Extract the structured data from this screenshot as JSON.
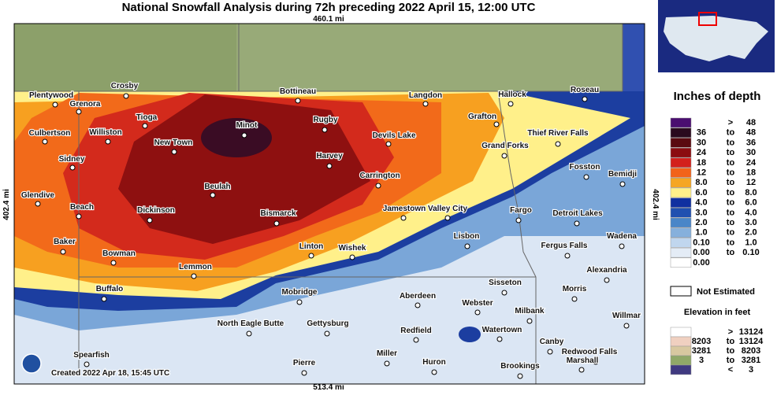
{
  "header": {
    "title": "National Snowfall Analysis during 72h preceding 2022 April 15, 12:00 UTC"
  },
  "map": {
    "scale_top": "460.1 mi",
    "scale_bottom": "513.4 mi",
    "scale_left": "402.4 mi",
    "scale_right": "402.4 mi",
    "created": "Created 2022 Apr 18, 15:45 UTC",
    "cities": [
      "Plentywood",
      "Crosby",
      "Grenora",
      "Bottineau",
      "Langdon",
      "Hallock",
      "Roseau",
      "Tioga",
      "Minot",
      "Rugby",
      "Grafton",
      "Culbertson",
      "Williston",
      "New Town",
      "Devils Lake",
      "Thief River Falls",
      "Grand Forks",
      "Sidney",
      "Harvey",
      "Fosston",
      "Carrington",
      "Bemidji",
      "Beulah",
      "Glendive",
      "Beach",
      "Jamestown",
      "Valley City",
      "Fargo",
      "Dickinson",
      "Detroit Lakes",
      "Bismarck",
      "Lisbon",
      "Wadena",
      "Baker",
      "Linton",
      "Wishek",
      "Fergus Falls",
      "Bowman",
      "Alexandria",
      "Lemmon",
      "Sisseton",
      "Buffalo",
      "Mobridge",
      "Morris",
      "Aberdeen",
      "Webster",
      "Milbank",
      "Willmar",
      "North Eagle Butte",
      "Gettysburg",
      "Redfield",
      "Watertown",
      "Canby",
      "Spearfish",
      "Miller",
      "Redwood Falls",
      "Marshall",
      "Pierre",
      "Huron",
      "Brookings"
    ]
  },
  "legend": {
    "depth_title": "Inches of depth",
    "depth_rows": [
      [
        ">",
        "48"
      ],
      [
        "36",
        "to",
        "48"
      ],
      [
        "30",
        "to",
        "36"
      ],
      [
        "24",
        "to",
        "30"
      ],
      [
        "18",
        "to",
        "24"
      ],
      [
        "12",
        "to",
        "18"
      ],
      [
        "8.0",
        "to",
        "12"
      ],
      [
        "6.0",
        "to",
        "8.0"
      ],
      [
        "4.0",
        "to",
        "6.0"
      ],
      [
        "3.0",
        "to",
        "4.0"
      ],
      [
        "2.0",
        "to",
        "3.0"
      ],
      [
        "1.0",
        "to",
        "2.0"
      ],
      [
        "0.10",
        "to",
        "1.0"
      ],
      [
        "0.00",
        "to",
        "0.10"
      ],
      [
        "0.00"
      ]
    ],
    "not_estimated": "Not Estimated",
    "elevation_title": "Elevation in feet",
    "elevation_rows": [
      [
        ">",
        "13124"
      ],
      [
        "8203",
        "to",
        "13124"
      ],
      [
        "3281",
        "to",
        "8203"
      ],
      [
        "3",
        "to",
        "3281"
      ],
      [
        "<",
        "3"
      ]
    ]
  }
}
